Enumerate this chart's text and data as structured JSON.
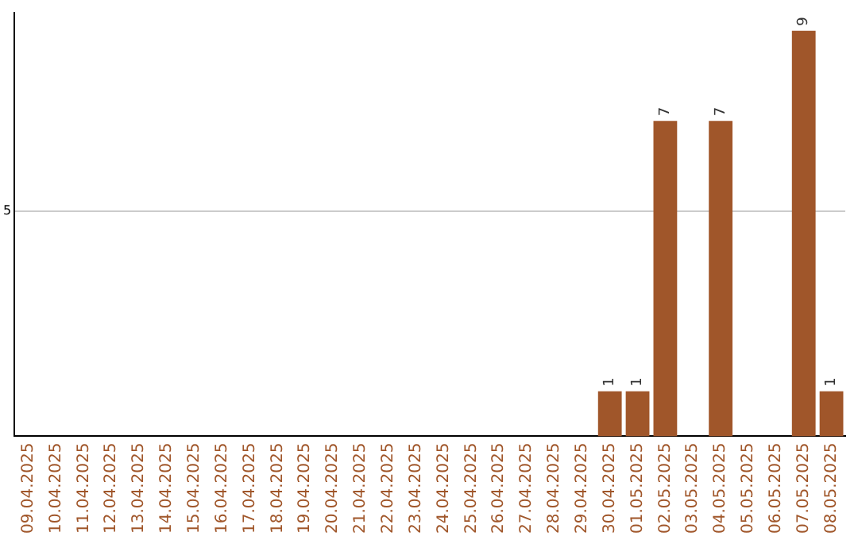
{
  "chart_data": {
    "type": "bar",
    "categories": [
      "09.04.2025",
      "10.04.2025",
      "11.04.2025",
      "12.04.2025",
      "13.04.2025",
      "14.04.2025",
      "15.04.2025",
      "16.04.2025",
      "17.04.2025",
      "18.04.2025",
      "19.04.2025",
      "20.04.2025",
      "21.04.2025",
      "22.04.2025",
      "23.04.2025",
      "24.04.2025",
      "25.04.2025",
      "26.04.2025",
      "27.04.2025",
      "28.04.2025",
      "29.04.2025",
      "30.04.2025",
      "01.05.2025",
      "02.05.2025",
      "03.05.2025",
      "04.05.2025",
      "05.05.2025",
      "06.05.2025",
      "07.05.2025",
      "08.05.2025"
    ],
    "values": [
      null,
      null,
      null,
      null,
      null,
      null,
      null,
      null,
      null,
      null,
      null,
      null,
      null,
      null,
      null,
      null,
      null,
      null,
      null,
      null,
      null,
      1,
      1,
      7,
      null,
      7,
      null,
      null,
      9,
      1
    ],
    "color": "#a0562a",
    "ylim": [
      0,
      9.4
    ],
    "yticks": [
      5
    ],
    "grid": "y",
    "data_labels": true,
    "legend": false
  }
}
